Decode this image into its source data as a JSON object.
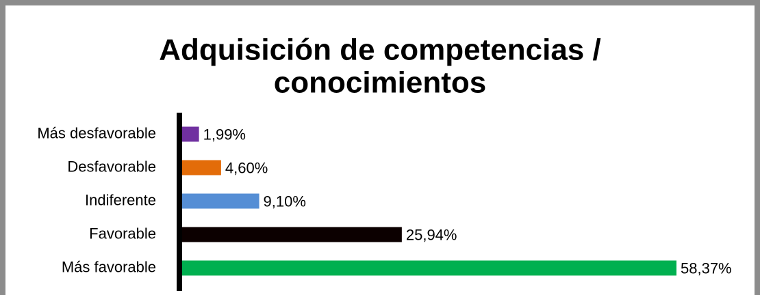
{
  "chart_data": {
    "type": "bar",
    "orientation": "horizontal",
    "title": [
      "Adquisición de competencias /",
      "conocimientos"
    ],
    "categories": [
      "Más desfavorable",
      "Desfavorable",
      "Indiferente",
      "Favorable",
      "Más favorable"
    ],
    "values": [
      1.99,
      4.6,
      9.1,
      25.94,
      58.37
    ],
    "value_labels": [
      "1,99%",
      "4,60%",
      "9,10%",
      "25,94%",
      "58,37%"
    ],
    "colors": [
      "#7030a0",
      "#e36c09",
      "#558ed5",
      "#0c0000",
      "#00b050"
    ]
  }
}
